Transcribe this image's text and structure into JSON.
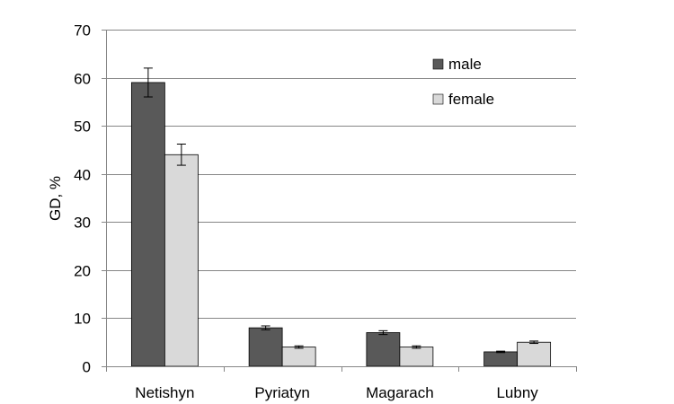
{
  "chart_data": {
    "type": "bar",
    "title": "",
    "xlabel": "",
    "ylabel": "GD, %",
    "ylim": [
      0,
      70
    ],
    "yticks": [
      0,
      10,
      20,
      30,
      40,
      50,
      60,
      70
    ],
    "grid": true,
    "legend_position": "top-right",
    "categories": [
      "Netishyn",
      "Pyriatyn",
      "Magarach",
      "Lubny"
    ],
    "series": [
      {
        "name": "male",
        "color": "#595959",
        "values": [
          59,
          8,
          7,
          3
        ],
        "errors": [
          3,
          0.4,
          0.4,
          0.15
        ]
      },
      {
        "name": "female",
        "color": "#d9d9d9",
        "values": [
          44,
          4,
          4,
          5
        ],
        "errors": [
          2.2,
          0.25,
          0.25,
          0.25
        ]
      }
    ]
  }
}
